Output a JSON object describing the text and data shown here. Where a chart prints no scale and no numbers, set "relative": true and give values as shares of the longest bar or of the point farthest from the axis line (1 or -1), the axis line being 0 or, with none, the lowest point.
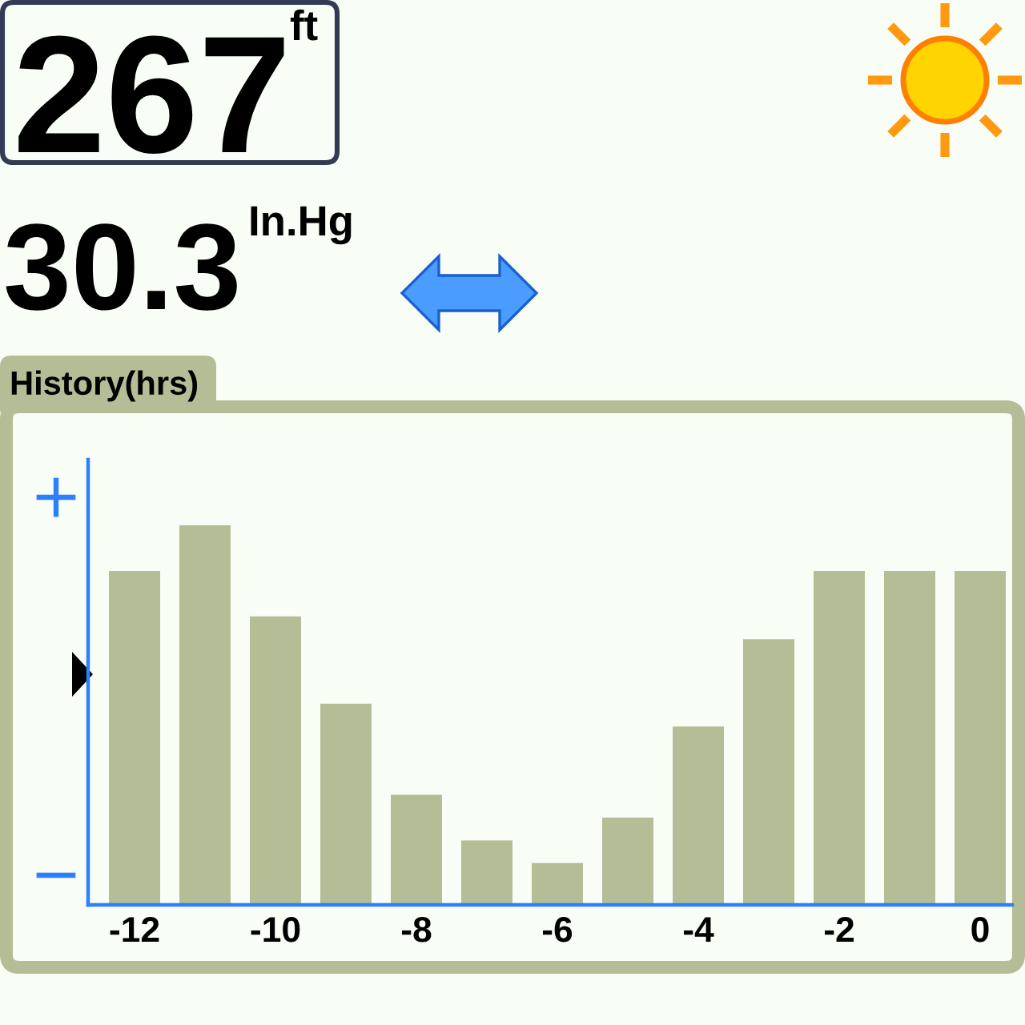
{
  "chart_data": {
    "type": "bar",
    "title": "History(hrs)",
    "categories": [
      "-12",
      null,
      "-10",
      null,
      "-8",
      null,
      "-6",
      null,
      "-4",
      null,
      "-2",
      null,
      "0"
    ],
    "values": [
      0.88,
      1,
      0.76,
      0.53,
      0.29,
      0.17,
      0.11,
      0.23,
      0.47,
      0.7,
      0.88,
      0.88,
      0.88
    ],
    "color": "#b5bd97",
    "relative": true,
    "annotations": [
      "267",
      "ft",
      "30.3",
      "In.Hg",
      "+",
      "−"
    ]
  }
}
